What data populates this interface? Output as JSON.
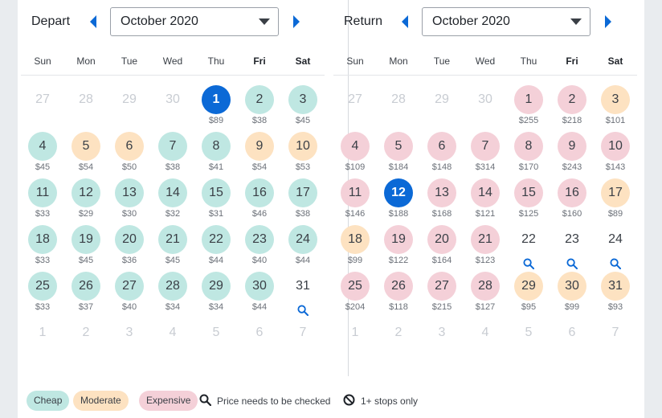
{
  "colors": {
    "cheap": "#bfe7e2",
    "moderate": "#fde2c1",
    "expensive": "#f4d0d8",
    "selected": "#0b69d6",
    "accent": "#0b69d6"
  },
  "weekdays": [
    "Sun",
    "Mon",
    "Tue",
    "Wed",
    "Thu",
    "Fri",
    "Sat"
  ],
  "depart": {
    "label": "Depart",
    "month": "October 2020",
    "prev_icon": "chevron-left-icon",
    "next_icon": "chevron-right-icon",
    "weeks": [
      [
        {
          "d": "27",
          "s": "muted"
        },
        {
          "d": "28",
          "s": "muted"
        },
        {
          "d": "29",
          "s": "muted"
        },
        {
          "d": "30",
          "s": "muted"
        },
        {
          "d": "1",
          "p": "$89",
          "s": "selected"
        },
        {
          "d": "2",
          "p": "$38",
          "s": "cheap"
        },
        {
          "d": "3",
          "p": "$45",
          "s": "cheap"
        }
      ],
      [
        {
          "d": "4",
          "p": "$45",
          "s": "cheap"
        },
        {
          "d": "5",
          "p": "$54",
          "s": "moderate"
        },
        {
          "d": "6",
          "p": "$50",
          "s": "moderate"
        },
        {
          "d": "7",
          "p": "$38",
          "s": "cheap"
        },
        {
          "d": "8",
          "p": "$41",
          "s": "cheap"
        },
        {
          "d": "9",
          "p": "$54",
          "s": "moderate"
        },
        {
          "d": "10",
          "p": "$53",
          "s": "moderate"
        }
      ],
      [
        {
          "d": "11",
          "p": "$33",
          "s": "cheap"
        },
        {
          "d": "12",
          "p": "$29",
          "s": "cheap"
        },
        {
          "d": "13",
          "p": "$30",
          "s": "cheap"
        },
        {
          "d": "14",
          "p": "$32",
          "s": "cheap"
        },
        {
          "d": "15",
          "p": "$31",
          "s": "cheap"
        },
        {
          "d": "16",
          "p": "$46",
          "s": "cheap"
        },
        {
          "d": "17",
          "p": "$38",
          "s": "cheap"
        }
      ],
      [
        {
          "d": "18",
          "p": "$33",
          "s": "cheap"
        },
        {
          "d": "19",
          "p": "$45",
          "s": "cheap"
        },
        {
          "d": "20",
          "p": "$36",
          "s": "cheap"
        },
        {
          "d": "21",
          "p": "$45",
          "s": "cheap"
        },
        {
          "d": "22",
          "p": "$44",
          "s": "cheap"
        },
        {
          "d": "23",
          "p": "$40",
          "s": "cheap"
        },
        {
          "d": "24",
          "p": "$44",
          "s": "cheap"
        }
      ],
      [
        {
          "d": "25",
          "p": "$33",
          "s": "cheap"
        },
        {
          "d": "26",
          "p": "$37",
          "s": "cheap"
        },
        {
          "d": "27",
          "p": "$40",
          "s": "cheap"
        },
        {
          "d": "28",
          "p": "$34",
          "s": "cheap"
        },
        {
          "d": "29",
          "p": "$34",
          "s": "cheap"
        },
        {
          "d": "30",
          "p": "$44",
          "s": "cheap"
        },
        {
          "d": "31",
          "s": "plain",
          "search": true
        }
      ],
      [
        {
          "d": "1",
          "s": "muted"
        },
        {
          "d": "2",
          "s": "muted"
        },
        {
          "d": "3",
          "s": "muted"
        },
        {
          "d": "4",
          "s": "muted"
        },
        {
          "d": "5",
          "s": "muted"
        },
        {
          "d": "6",
          "s": "muted"
        },
        {
          "d": "7",
          "s": "muted"
        }
      ]
    ]
  },
  "return": {
    "label": "Return",
    "month": "October 2020",
    "prev_icon": "chevron-left-icon",
    "next_icon": "chevron-right-icon",
    "weeks": [
      [
        {
          "d": "27",
          "s": "muted"
        },
        {
          "d": "28",
          "s": "muted"
        },
        {
          "d": "29",
          "s": "muted"
        },
        {
          "d": "30",
          "s": "muted"
        },
        {
          "d": "1",
          "p": "$255",
          "s": "expensive"
        },
        {
          "d": "2",
          "p": "$218",
          "s": "expensive"
        },
        {
          "d": "3",
          "p": "$101",
          "s": "moderate"
        }
      ],
      [
        {
          "d": "4",
          "p": "$109",
          "s": "expensive"
        },
        {
          "d": "5",
          "p": "$184",
          "s": "expensive"
        },
        {
          "d": "6",
          "p": "$148",
          "s": "expensive"
        },
        {
          "d": "7",
          "p": "$314",
          "s": "expensive"
        },
        {
          "d": "8",
          "p": "$170",
          "s": "expensive"
        },
        {
          "d": "9",
          "p": "$243",
          "s": "expensive"
        },
        {
          "d": "10",
          "p": "$143",
          "s": "expensive"
        }
      ],
      [
        {
          "d": "11",
          "p": "$146",
          "s": "expensive"
        },
        {
          "d": "12",
          "p": "$188",
          "s": "selected"
        },
        {
          "d": "13",
          "p": "$168",
          "s": "expensive"
        },
        {
          "d": "14",
          "p": "$121",
          "s": "expensive"
        },
        {
          "d": "15",
          "p": "$125",
          "s": "expensive"
        },
        {
          "d": "16",
          "p": "$160",
          "s": "expensive"
        },
        {
          "d": "17",
          "p": "$89",
          "s": "moderate"
        }
      ],
      [
        {
          "d": "18",
          "p": "$99",
          "s": "moderate"
        },
        {
          "d": "19",
          "p": "$122",
          "s": "expensive"
        },
        {
          "d": "20",
          "p": "$164",
          "s": "expensive"
        },
        {
          "d": "21",
          "p": "$123",
          "s": "expensive"
        },
        {
          "d": "22",
          "s": "plain",
          "search": true
        },
        {
          "d": "23",
          "s": "plain",
          "search": true
        },
        {
          "d": "24",
          "s": "plain",
          "search": true
        }
      ],
      [
        {
          "d": "25",
          "p": "$204",
          "s": "expensive"
        },
        {
          "d": "26",
          "p": "$118",
          "s": "expensive"
        },
        {
          "d": "27",
          "p": "$215",
          "s": "expensive"
        },
        {
          "d": "28",
          "p": "$127",
          "s": "expensive"
        },
        {
          "d": "29",
          "p": "$95",
          "s": "moderate"
        },
        {
          "d": "30",
          "p": "$99",
          "s": "moderate"
        },
        {
          "d": "31",
          "p": "$93",
          "s": "moderate"
        }
      ],
      [
        {
          "d": "1",
          "s": "muted"
        },
        {
          "d": "2",
          "s": "muted"
        },
        {
          "d": "3",
          "s": "muted"
        },
        {
          "d": "4",
          "s": "muted"
        },
        {
          "d": "5",
          "s": "muted"
        },
        {
          "d": "6",
          "s": "muted"
        },
        {
          "d": "7",
          "s": "muted"
        }
      ]
    ]
  },
  "legend": {
    "cheap": "Cheap",
    "moderate": "Moderate",
    "expensive": "Expensive",
    "price_check_icon": "search-icon",
    "price_check": "Price needs to be checked",
    "stops_icon": "no-entry-icon",
    "stops": "1+ stops only"
  }
}
